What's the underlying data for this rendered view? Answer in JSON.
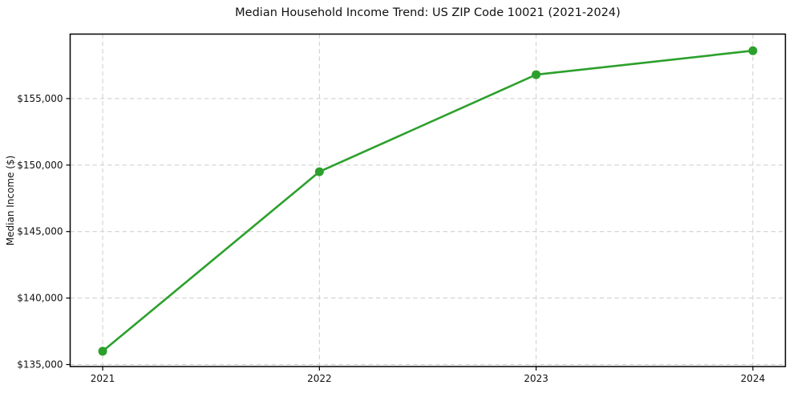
{
  "chart_data": {
    "type": "line",
    "title": "Median Household Income Trend: US ZIP Code 10021 (2021-2024)",
    "xlabel": "",
    "ylabel": "Median Income ($)",
    "x": [
      2021,
      2022,
      2023,
      2024
    ],
    "x_tick_labels": [
      "2021",
      "2022",
      "2023",
      "2024"
    ],
    "series": [
      {
        "name": "Median Household Income",
        "values": [
          136000,
          149500,
          156800,
          158600
        ]
      }
    ],
    "y_ticks": [
      135000,
      140000,
      145000,
      150000,
      155000
    ],
    "y_tick_labels": [
      "$135,000",
      "$140,000",
      "$145,000",
      "$150,000",
      "$155,000"
    ],
    "xlim": [
      2020.85,
      2024.15
    ],
    "ylim": [
      134850,
      159850
    ],
    "grid": true,
    "legend": "none",
    "line_color": "#2ca02c",
    "marker": "circle",
    "grid_color": "#cccccc",
    "spine_color": "#000000",
    "background_color": "#ffffff"
  }
}
